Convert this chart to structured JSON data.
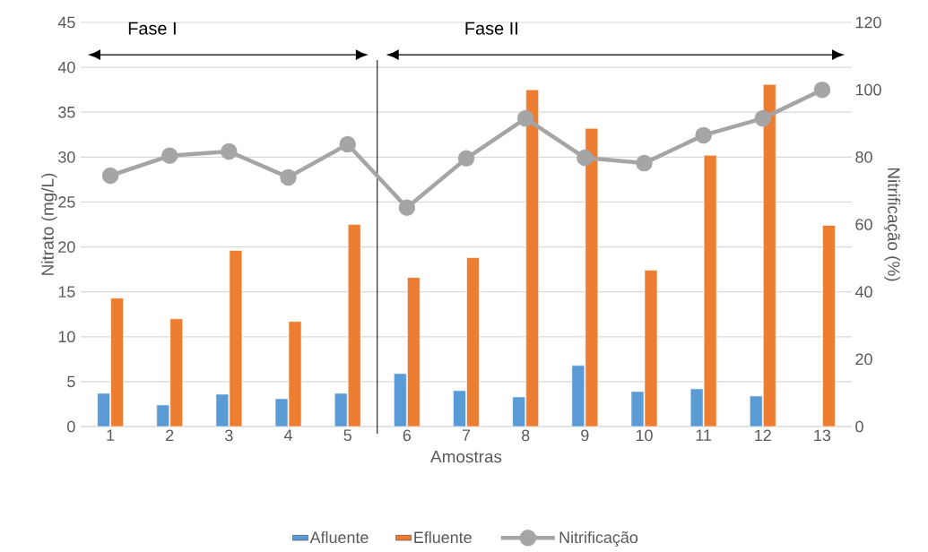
{
  "chart_data": {
    "type": "bar",
    "xlabel": "Amostras",
    "ylabel": "Nitrato (mg/L)",
    "y2label": "Nitrificação (%)",
    "x": [
      1,
      2,
      3,
      4,
      5,
      6,
      7,
      8,
      9,
      10,
      11,
      12,
      13
    ],
    "xlim": [
      0.5,
      13.5
    ],
    "xticks": [
      1,
      2,
      3,
      4,
      5,
      6,
      7,
      8,
      9,
      10,
      11,
      12,
      13
    ],
    "ylim": [
      0,
      45
    ],
    "yticks": [
      0,
      5,
      10,
      15,
      20,
      25,
      30,
      35,
      40,
      45
    ],
    "y2lim": [
      0,
      120
    ],
    "y2ticks": [
      0,
      20,
      40,
      60,
      80,
      100,
      120
    ],
    "grid": "y",
    "legend": "bottom",
    "series": [
      {
        "name": "Afluente",
        "color": "#5b9bd5",
        "values": [
          3.7,
          2.4,
          3.6,
          3.1,
          3.7,
          5.9,
          4.0,
          3.3,
          6.8,
          3.9,
          4.2,
          3.4,
          null
        ]
      },
      {
        "name": "Efluente",
        "color": "#ed7d31",
        "values": [
          14.3,
          12.0,
          19.6,
          11.7,
          22.5,
          16.6,
          18.8,
          37.5,
          33.2,
          17.4,
          30.2,
          38.1,
          22.4
        ]
      },
      {
        "name": "Nitrificação",
        "type": "line",
        "axis": "y2",
        "color": "#a5a5a5",
        "marker": "circle",
        "line_style": "solid",
        "values": [
          74.5,
          80.4,
          81.7,
          74,
          83.8,
          65,
          79.6,
          91.5,
          79.8,
          78.2,
          86.5,
          91.5,
          100
        ]
      }
    ],
    "ref_lines": [
      {
        "axis": "x",
        "value": 5.5,
        "color": "#000000"
      }
    ],
    "annotations": [
      "Fase I",
      "Fase II"
    ]
  }
}
